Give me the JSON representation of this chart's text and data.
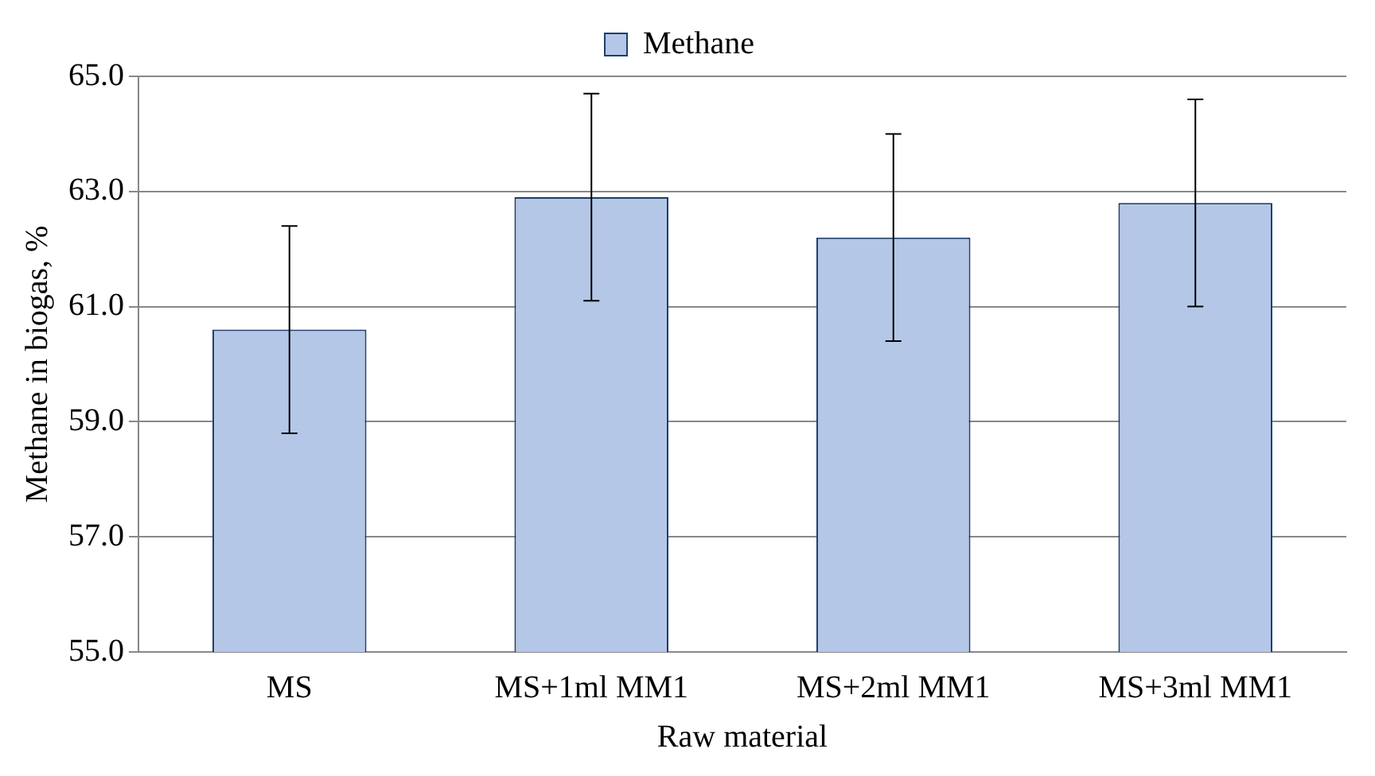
{
  "chart_data": {
    "type": "bar",
    "xlabel": "Raw material",
    "ylabel": "Methane in biogas, %",
    "categories": [
      "MS",
      "MS+1ml MM1",
      "MS+2ml MM1",
      "MS+3ml MM1"
    ],
    "series": [
      {
        "name": "Methane",
        "color": "#b4c7e7",
        "values": [
          60.6,
          62.9,
          62.2,
          62.8
        ],
        "errors": [
          1.8,
          1.8,
          1.8,
          1.8
        ]
      }
    ],
    "ylim": [
      55,
      65
    ],
    "yticks": [
      {
        "value": 55,
        "label": "55.0"
      },
      {
        "value": 57,
        "label": "57.0"
      },
      {
        "value": 59,
        "label": "59.0"
      },
      {
        "value": 61,
        "label": "61.0"
      },
      {
        "value": 63,
        "label": "63.0"
      },
      {
        "value": 65,
        "label": "65.0"
      }
    ],
    "grid": "y",
    "legend": "top"
  }
}
